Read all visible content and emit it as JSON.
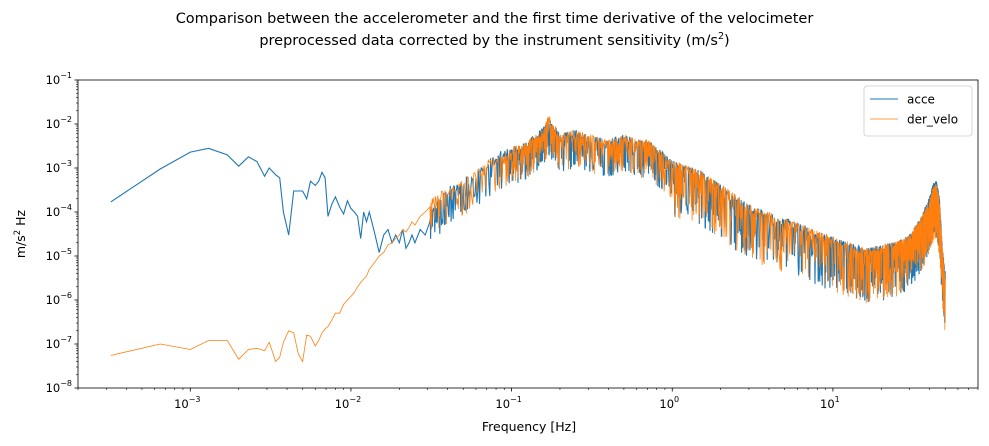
{
  "chart_data": {
    "type": "line",
    "title_line1": "Comparison between the accelerometer and the first time derivative of the velocimeter",
    "title_line2_prefix": "preprocessed data corrected by the instrument sensitivity (m/s",
    "title_line2_sup": "2",
    "title_line2_suffix": ")",
    "xlabel": "Frequency [Hz]",
    "ylabel_prefix": "m/s",
    "ylabel_sup": "2",
    "ylabel_suffix": " Hz",
    "x_scale": "log",
    "y_scale": "log",
    "xlim": [
      0.0002,
      80
    ],
    "ylim": [
      1e-08,
      0.1
    ],
    "x_tick_labels": [
      {
        "base": "10",
        "exp": "−3",
        "value": 0.001
      },
      {
        "base": "10",
        "exp": "−2",
        "value": 0.01
      },
      {
        "base": "10",
        "exp": "−1",
        "value": 0.1
      },
      {
        "base": "10",
        "exp": "0",
        "value": 1
      },
      {
        "base": "10",
        "exp": "1",
        "value": 10
      }
    ],
    "y_tick_labels": [
      {
        "base": "10",
        "exp": "−8",
        "value": 1e-08
      },
      {
        "base": "10",
        "exp": "−7",
        "value": 1e-07
      },
      {
        "base": "10",
        "exp": "−6",
        "value": 1e-06
      },
      {
        "base": "10",
        "exp": "−5",
        "value": 1e-05
      },
      {
        "base": "10",
        "exp": "−4",
        "value": 0.0001
      },
      {
        "base": "10",
        "exp": "−3",
        "value": 0.001
      },
      {
        "base": "10",
        "exp": "−2",
        "value": 0.01
      },
      {
        "base": "10",
        "exp": "−1",
        "value": 0.1
      }
    ],
    "grid": false,
    "legend_position": "top-right",
    "series": [
      {
        "name": "acce",
        "color": "#1f77b4",
        "x": [
          0.00032,
          0.00065,
          0.001,
          0.0013,
          0.0017,
          0.002,
          0.0023,
          0.0026,
          0.0029,
          0.0031,
          0.0034,
          0.0036,
          0.0038,
          0.0041,
          0.0044,
          0.0047,
          0.005,
          0.0053,
          0.0056,
          0.006,
          0.0063,
          0.0066,
          0.0069,
          0.0072,
          0.0076,
          0.008,
          0.0085,
          0.009,
          0.0095,
          0.01,
          0.0105,
          0.011,
          0.0115,
          0.012,
          0.0125,
          0.013,
          0.014,
          0.015,
          0.016,
          0.017,
          0.018,
          0.019,
          0.02,
          0.021,
          0.022,
          0.023,
          0.024,
          0.025,
          0.027,
          0.029,
          0.031,
          0.033,
          0.036,
          0.04,
          0.045,
          0.05,
          0.06,
          0.07,
          0.08,
          0.09,
          0.1,
          0.12,
          0.14,
          0.16,
          0.17,
          0.2,
          0.25,
          0.3,
          0.4,
          0.5,
          0.6,
          0.7,
          0.8,
          1,
          1.5,
          2,
          3,
          5,
          8,
          12,
          16,
          20,
          25,
          30,
          35,
          40,
          42,
          44,
          46,
          48,
          50
        ],
        "y": [
          0.00017,
          0.00095,
          0.0023,
          0.0028,
          0.002,
          0.0011,
          0.0018,
          0.0014,
          0.00065,
          0.001,
          0.0007,
          0.0006,
          0.0001,
          3e-05,
          0.0003,
          0.0003,
          0.0003,
          0.0002,
          0.0005,
          0.0004,
          0.0005,
          0.0008,
          0.0006,
          8e-05,
          0.00015,
          0.00022,
          0.00013,
          9e-05,
          0.00018,
          0.00012,
          0.0001,
          8e-05,
          2.5e-05,
          0.0001,
          6e-05,
          0.0001,
          3.5e-05,
          1.2e-05,
          3e-05,
          4e-05,
          2e-05,
          3e-05,
          2e-05,
          4e-05,
          1.5e-05,
          2e-05,
          3e-05,
          2e-05,
          4e-05,
          3e-05,
          6e-05,
          0.0001,
          0.00015,
          0.00025,
          0.0003,
          0.0004,
          0.0006,
          0.001,
          0.0014,
          0.0018,
          0.002,
          0.0025,
          0.004,
          0.006,
          0.01,
          0.004,
          0.005,
          0.004,
          0.003,
          0.004,
          0.003,
          0.003,
          0.002,
          0.001,
          0.0006,
          0.0003,
          0.0001,
          5e-05,
          2.5e-05,
          1.5e-05,
          1e-05,
          1.2e-05,
          1.5e-05,
          2e-05,
          5e-05,
          0.00015,
          0.0003,
          0.00035,
          0.00015,
          1e-05,
          3e-06
        ]
      },
      {
        "name": "der_velo",
        "color": "#ff7f0e",
        "x": [
          0.00032,
          0.00065,
          0.001,
          0.0013,
          0.0017,
          0.002,
          0.0023,
          0.0026,
          0.0029,
          0.0031,
          0.0034,
          0.0036,
          0.0038,
          0.0041,
          0.0044,
          0.0047,
          0.005,
          0.0053,
          0.0056,
          0.006,
          0.0063,
          0.0066,
          0.0069,
          0.0072,
          0.0076,
          0.008,
          0.0085,
          0.009,
          0.0095,
          0.01,
          0.0105,
          0.011,
          0.0115,
          0.012,
          0.0125,
          0.013,
          0.014,
          0.015,
          0.016,
          0.017,
          0.018,
          0.019,
          0.02,
          0.021,
          0.022,
          0.023,
          0.024,
          0.025,
          0.027,
          0.029,
          0.031,
          0.033,
          0.036,
          0.04,
          0.045,
          0.05,
          0.06,
          0.07,
          0.08,
          0.09,
          0.1,
          0.12,
          0.14,
          0.16,
          0.17,
          0.2,
          0.25,
          0.3,
          0.4,
          0.5,
          0.6,
          0.7,
          0.8,
          1,
          1.5,
          2,
          3,
          5,
          8,
          12,
          16,
          20,
          25,
          30,
          35,
          40,
          42,
          44,
          46,
          48,
          50
        ],
        "y": [
          5.5e-08,
          1e-07,
          7.5e-08,
          1.2e-07,
          1.2e-07,
          4.5e-08,
          7.5e-08,
          8e-08,
          7e-08,
          1.1e-07,
          4e-08,
          5e-08,
          1.1e-07,
          2e-07,
          1.8e-07,
          6e-08,
          4e-08,
          1.6e-07,
          1.5e-07,
          9e-08,
          1.2e-07,
          1.8e-07,
          2.2e-07,
          2.5e-07,
          3.5e-07,
          5e-07,
          5e-07,
          8e-07,
          1e-06,
          1.2e-06,
          1.5e-06,
          2e-06,
          2.5e-06,
          3e-06,
          3.5e-06,
          5e-06,
          7e-06,
          1e-05,
          1.2e-05,
          1.8e-05,
          2e-05,
          2.5e-05,
          3e-05,
          4e-05,
          3.5e-05,
          4.5e-05,
          6e-05,
          5e-05,
          8e-05,
          0.0001,
          0.00013,
          0.00015,
          0.0002,
          0.00025,
          0.0003,
          0.0004,
          0.0006,
          0.001,
          0.0014,
          0.0018,
          0.002,
          0.0025,
          0.004,
          0.006,
          0.011,
          0.004,
          0.005,
          0.004,
          0.003,
          0.004,
          0.003,
          0.003,
          0.002,
          0.001,
          0.0006,
          0.0003,
          0.0001,
          5e-05,
          2.5e-05,
          1.5e-05,
          1e-05,
          1.2e-05,
          1.5e-05,
          2e-05,
          5e-05,
          0.00012,
          0.00025,
          0.0003,
          0.00012,
          1e-05,
          2e-06
        ]
      }
    ]
  }
}
